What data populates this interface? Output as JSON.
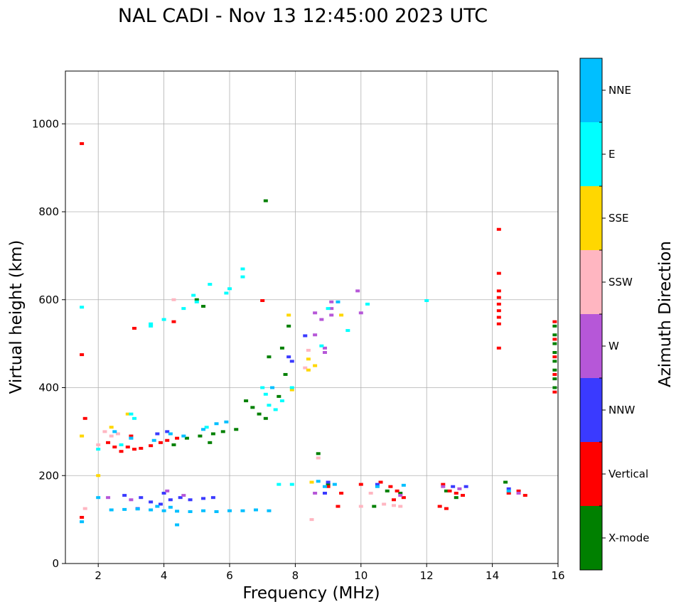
{
  "chart_data": {
    "type": "scatter",
    "title": "NAL CADI - Nov 13 12:45:00 2023 UTC",
    "xlabel": "Frequency (MHz)",
    "ylabel": "Virtual height (km)",
    "xlim": [
      1,
      16
    ],
    "ylim": [
      0,
      1120
    ],
    "xticks": [
      2,
      4,
      6,
      8,
      10,
      12,
      14,
      16
    ],
    "yticks": [
      0,
      200,
      400,
      600,
      800,
      1000
    ],
    "grid": true,
    "colorbar": {
      "label": "Azimuth Direction",
      "placement": "right",
      "categories": [
        {
          "name": "X-mode",
          "color": "#008000"
        },
        {
          "name": "Vertical",
          "color": "#ff0000"
        },
        {
          "name": "NNW",
          "color": "#3a3aff"
        },
        {
          "name": "W",
          "color": "#b657d8"
        },
        {
          "name": "SSW",
          "color": "#ffb6c1"
        },
        {
          "name": "SSE",
          "color": "#ffd700"
        },
        {
          "name": "E",
          "color": "#00ffff"
        },
        {
          "name": "NNE",
          "color": "#00bfff"
        }
      ]
    },
    "series": [
      {
        "name": "X-mode",
        "points": [
          [
            7.1,
            825
          ],
          [
            7.8,
            540
          ],
          [
            7.6,
            490
          ],
          [
            7.2,
            470
          ],
          [
            6.5,
            370
          ],
          [
            6.7,
            355
          ],
          [
            6.9,
            340
          ],
          [
            7.1,
            330
          ],
          [
            6.2,
            305
          ],
          [
            5.8,
            300
          ],
          [
            5.5,
            295
          ],
          [
            5.1,
            290
          ],
          [
            4.7,
            285
          ],
          [
            5.4,
            275
          ],
          [
            4.3,
            270
          ],
          [
            5.2,
            585
          ],
          [
            5.0,
            600
          ],
          [
            7.5,
            380
          ],
          [
            7.7,
            430
          ],
          [
            8.7,
            250
          ],
          [
            9.0,
            180
          ],
          [
            10.4,
            130
          ],
          [
            10.8,
            165
          ],
          [
            11.2,
            160
          ],
          [
            12.6,
            165
          ],
          [
            12.9,
            150
          ],
          [
            14.4,
            185
          ],
          [
            15.9,
            540
          ],
          [
            15.9,
            520
          ],
          [
            15.9,
            500
          ],
          [
            15.9,
            480
          ],
          [
            15.9,
            460
          ],
          [
            15.9,
            440
          ],
          [
            15.9,
            420
          ],
          [
            15.9,
            400
          ]
        ]
      },
      {
        "name": "Vertical",
        "points": [
          [
            1.5,
            955
          ],
          [
            1.5,
            475
          ],
          [
            3.1,
            535
          ],
          [
            4.3,
            550
          ],
          [
            7.0,
            598
          ],
          [
            14.2,
            760
          ],
          [
            14.2,
            660
          ],
          [
            14.2,
            620
          ],
          [
            14.2,
            605
          ],
          [
            14.2,
            590
          ],
          [
            14.2,
            575
          ],
          [
            14.2,
            560
          ],
          [
            14.2,
            545
          ],
          [
            14.2,
            490
          ],
          [
            2.9,
            265
          ],
          [
            3.1,
            260
          ],
          [
            3.3,
            262
          ],
          [
            3.6,
            268
          ],
          [
            3.9,
            275
          ],
          [
            4.1,
            280
          ],
          [
            4.4,
            285
          ],
          [
            2.3,
            275
          ],
          [
            2.5,
            265
          ],
          [
            2.7,
            255
          ],
          [
            3.0,
            290
          ],
          [
            9.0,
            175
          ],
          [
            9.4,
            160
          ],
          [
            10.0,
            180
          ],
          [
            10.6,
            185
          ],
          [
            10.9,
            175
          ],
          [
            11.1,
            165
          ],
          [
            11.3,
            150
          ],
          [
            11.0,
            145
          ],
          [
            12.5,
            180
          ],
          [
            12.7,
            165
          ],
          [
            12.9,
            160
          ],
          [
            13.1,
            155
          ],
          [
            12.4,
            130
          ],
          [
            12.6,
            125
          ],
          [
            14.5,
            160
          ],
          [
            14.8,
            165
          ],
          [
            15.0,
            155
          ],
          [
            15.9,
            550
          ],
          [
            15.9,
            510
          ],
          [
            15.9,
            470
          ],
          [
            15.9,
            430
          ],
          [
            15.9,
            390
          ],
          [
            1.5,
            105
          ],
          [
            9.3,
            130
          ],
          [
            1.6,
            330
          ]
        ]
      },
      {
        "name": "NNW",
        "points": [
          [
            3.3,
            150
          ],
          [
            3.6,
            140
          ],
          [
            3.9,
            135
          ],
          [
            4.2,
            145
          ],
          [
            4.5,
            150
          ],
          [
            4.8,
            145
          ],
          [
            5.2,
            148
          ],
          [
            5.5,
            150
          ],
          [
            4.0,
            160
          ],
          [
            3.2,
            125
          ],
          [
            2.8,
            155
          ],
          [
            8.3,
            518
          ],
          [
            7.8,
            470
          ],
          [
            7.9,
            460
          ],
          [
            3.8,
            295
          ],
          [
            4.1,
            300
          ],
          [
            8.9,
            160
          ],
          [
            10.5,
            180
          ],
          [
            12.8,
            175
          ],
          [
            14.5,
            170
          ],
          [
            13.2,
            175
          ],
          [
            9.0,
            185
          ]
        ]
      },
      {
        "name": "W",
        "points": [
          [
            8.6,
            520
          ],
          [
            8.9,
            490
          ],
          [
            8.9,
            480
          ],
          [
            9.1,
            595
          ],
          [
            9.1,
            580
          ],
          [
            9.1,
            565
          ],
          [
            8.6,
            570
          ],
          [
            9.9,
            620
          ],
          [
            10.0,
            570
          ],
          [
            4.1,
            165
          ],
          [
            4.6,
            155
          ],
          [
            8.6,
            160
          ],
          [
            11.2,
            155
          ],
          [
            13.0,
            170
          ],
          [
            14.8,
            160
          ],
          [
            2.3,
            150
          ],
          [
            3.0,
            145
          ],
          [
            12.5,
            175
          ],
          [
            8.8,
            555
          ]
        ]
      },
      {
        "name": "SSW",
        "points": [
          [
            8.3,
            445
          ],
          [
            8.4,
            485
          ],
          [
            10.0,
            130
          ],
          [
            10.7,
            135
          ],
          [
            11.2,
            130
          ],
          [
            11.0,
            132
          ],
          [
            2.2,
            300
          ],
          [
            2.6,
            295
          ],
          [
            2.0,
            270
          ],
          [
            2.4,
            290
          ],
          [
            3.0,
            285
          ],
          [
            4.3,
            600
          ],
          [
            10.3,
            160
          ],
          [
            8.7,
            240
          ],
          [
            1.6,
            125
          ],
          [
            8.5,
            100
          ]
        ]
      },
      {
        "name": "SSE",
        "points": [
          [
            8.4,
            465
          ],
          [
            8.6,
            450
          ],
          [
            7.9,
            395
          ],
          [
            7.8,
            565
          ],
          [
            9.4,
            565
          ],
          [
            8.4,
            440
          ],
          [
            2.4,
            310
          ],
          [
            2.9,
            340
          ],
          [
            8.5,
            185
          ],
          [
            2.0,
            200
          ],
          [
            1.5,
            290
          ]
        ]
      },
      {
        "name": "E",
        "points": [
          [
            6.4,
            670
          ],
          [
            6.4,
            652
          ],
          [
            5.0,
            595
          ],
          [
            4.9,
            610
          ],
          [
            5.4,
            635
          ],
          [
            5.9,
            615
          ],
          [
            6.0,
            625
          ],
          [
            4.6,
            580
          ],
          [
            4.0,
            555
          ],
          [
            3.6,
            545
          ],
          [
            7.0,
            400
          ],
          [
            7.1,
            385
          ],
          [
            7.2,
            360
          ],
          [
            7.4,
            350
          ],
          [
            7.6,
            370
          ],
          [
            7.9,
            400
          ],
          [
            3.0,
            340
          ],
          [
            3.1,
            330
          ],
          [
            8.8,
            495
          ],
          [
            9.6,
            530
          ],
          [
            10.2,
            590
          ],
          [
            12.0,
            598
          ],
          [
            7.5,
            180
          ],
          [
            7.9,
            180
          ],
          [
            3.6,
            540
          ],
          [
            2.0,
            260
          ],
          [
            9.0,
            580
          ],
          [
            1.5,
            583
          ],
          [
            5.3,
            310
          ],
          [
            2.7,
            270
          ]
        ]
      },
      {
        "name": "NNE",
        "points": [
          [
            2.4,
            122
          ],
          [
            2.8,
            123
          ],
          [
            3.2,
            124
          ],
          [
            3.6,
            122
          ],
          [
            4.0,
            120
          ],
          [
            4.4,
            119
          ],
          [
            4.8,
            118
          ],
          [
            5.2,
            120
          ],
          [
            5.6,
            118
          ],
          [
            6.0,
            120
          ],
          [
            6.4,
            120
          ],
          [
            6.8,
            122
          ],
          [
            7.2,
            120
          ],
          [
            3.8,
            130
          ],
          [
            4.2,
            128
          ],
          [
            4.4,
            88
          ],
          [
            8.9,
            175
          ],
          [
            2.5,
            300
          ],
          [
            3.0,
            285
          ],
          [
            4.6,
            290
          ],
          [
            5.2,
            305
          ],
          [
            5.6,
            318
          ],
          [
            5.9,
            322
          ],
          [
            4.2,
            295
          ],
          [
            3.7,
            280
          ],
          [
            1.5,
            95
          ],
          [
            2.0,
            150
          ],
          [
            9.2,
            180
          ],
          [
            10.5,
            175
          ],
          [
            14.5,
            165
          ],
          [
            7.3,
            400
          ],
          [
            9.3,
            595
          ],
          [
            8.7,
            187
          ],
          [
            11.3,
            178
          ]
        ]
      }
    ]
  }
}
